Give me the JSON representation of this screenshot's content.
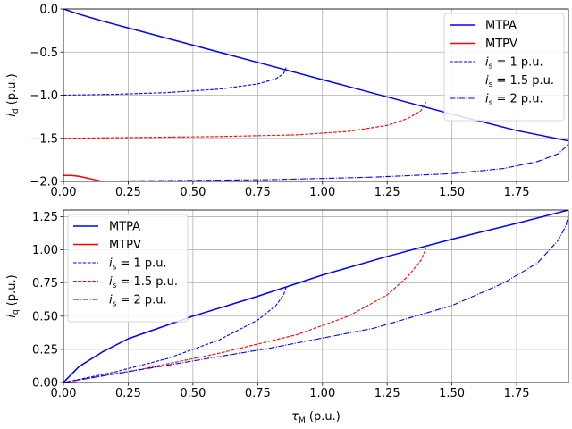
{
  "chart_data": [
    {
      "type": "line",
      "ylabel_main": "i",
      "ylabel_sub": "d",
      "ylabel_unit": " (p.u.)",
      "xlim": [
        0,
        1.95
      ],
      "ylim": [
        -2.0,
        0.0
      ],
      "xticks": [
        "0.00",
        "0.25",
        "0.50",
        "0.75",
        "1.00",
        "1.25",
        "1.50",
        "1.75"
      ],
      "xtick_values": [
        0,
        0.25,
        0.5,
        0.75,
        1.0,
        1.25,
        1.5,
        1.75
      ],
      "yticks": [
        "0.0",
        "−0.5",
        "−1.0",
        "−1.5",
        "−2.0"
      ],
      "ytick_values": [
        0,
        -0.5,
        -1.0,
        -1.5,
        -2.0
      ],
      "grid": true,
      "legend_position": "upper-right",
      "series": [
        {
          "name": "MTPA",
          "color": "#0000ff",
          "dash": "solid",
          "x": [
            0,
            0.06,
            0.15,
            0.25,
            0.5,
            0.75,
            1.0,
            1.25,
            1.5,
            1.75,
            1.95
          ],
          "y": [
            0,
            -0.06,
            -0.14,
            -0.22,
            -0.42,
            -0.62,
            -0.82,
            -1.02,
            -1.22,
            -1.41,
            -1.53
          ]
        },
        {
          "name": "MTPV",
          "color": "#ff0000",
          "dash": "solid",
          "x": [
            0,
            0.03,
            0.06,
            0.09,
            0.12,
            0.15
          ],
          "y": [
            -1.93,
            -1.93,
            -1.94,
            -1.96,
            -1.98,
            -2.0
          ]
        },
        {
          "name_prefix": "i",
          "name_sub": "s",
          "name_suffix": " = 1 p.u.",
          "color": "#0000ff",
          "dash": "dashed",
          "x": [
            0,
            0.2,
            0.4,
            0.6,
            0.75,
            0.82,
            0.85,
            0.86
          ],
          "y": [
            -1.0,
            -0.99,
            -0.97,
            -0.93,
            -0.87,
            -0.81,
            -0.75,
            -0.68
          ]
        },
        {
          "name_prefix": "i",
          "name_sub": "s",
          "name_suffix": " = 1.5 p.u.",
          "color": "#ff0000",
          "dash": "dashed",
          "x": [
            0,
            0.3,
            0.6,
            0.9,
            1.1,
            1.25,
            1.33,
            1.38,
            1.4
          ],
          "y": [
            -1.5,
            -1.49,
            -1.48,
            -1.46,
            -1.42,
            -1.35,
            -1.27,
            -1.18,
            -1.08
          ]
        },
        {
          "name_prefix": "i",
          "name_sub": "s",
          "name_suffix": " = 2 p.u.",
          "color": "#0000ff",
          "dash": "dashdot",
          "x": [
            0,
            0.4,
            0.8,
            1.2,
            1.5,
            1.7,
            1.83,
            1.91,
            1.94,
            1.95
          ],
          "y": [
            -2.0,
            -1.99,
            -1.98,
            -1.95,
            -1.91,
            -1.85,
            -1.77,
            -1.68,
            -1.6,
            -1.55
          ]
        }
      ]
    },
    {
      "type": "line",
      "xlabel_main": "τ",
      "xlabel_sub": "M",
      "xlabel_unit": " (p.u.)",
      "ylabel_main": "i",
      "ylabel_sub": "q",
      "ylabel_unit": " (p.u.)",
      "xlim": [
        0,
        1.95
      ],
      "ylim": [
        0,
        1.3
      ],
      "xticks": [
        "0.00",
        "0.25",
        "0.50",
        "0.75",
        "1.00",
        "1.25",
        "1.50",
        "1.75"
      ],
      "xtick_values": [
        0,
        0.25,
        0.5,
        0.75,
        1.0,
        1.25,
        1.5,
        1.75
      ],
      "yticks": [
        "0.00",
        "0.25",
        "0.50",
        "0.75",
        "1.00",
        "1.25"
      ],
      "ytick_values": [
        0,
        0.25,
        0.5,
        0.75,
        1.0,
        1.25
      ],
      "grid": true,
      "legend_position": "upper-left",
      "series": [
        {
          "name": "MTPA",
          "color": "#0000ff",
          "dash": "solid",
          "x": [
            0,
            0.06,
            0.15,
            0.25,
            0.5,
            0.75,
            1.0,
            1.25,
            1.5,
            1.75,
            1.95
          ],
          "y": [
            0,
            0.12,
            0.23,
            0.33,
            0.5,
            0.65,
            0.81,
            0.95,
            1.08,
            1.2,
            1.3
          ]
        },
        {
          "name": "MTPV",
          "color": "#ff0000",
          "dash": "solid",
          "x": [
            0,
            0.05
          ],
          "y": [
            0,
            0.0
          ]
        },
        {
          "name_prefix": "i",
          "name_sub": "s",
          "name_suffix": " = 1 p.u.",
          "color": "#0000ff",
          "dash": "dashed",
          "x": [
            0,
            0.2,
            0.4,
            0.6,
            0.75,
            0.82,
            0.85,
            0.86
          ],
          "y": [
            0,
            0.08,
            0.18,
            0.32,
            0.47,
            0.58,
            0.66,
            0.72
          ]
        },
        {
          "name_prefix": "i",
          "name_sub": "s",
          "name_suffix": " = 1.5 p.u.",
          "color": "#ff0000",
          "dash": "dashed",
          "x": [
            0,
            0.3,
            0.6,
            0.9,
            1.1,
            1.25,
            1.33,
            1.38,
            1.4
          ],
          "y": [
            0,
            0.1,
            0.22,
            0.36,
            0.5,
            0.66,
            0.8,
            0.92,
            1.01
          ]
        },
        {
          "name_prefix": "i",
          "name_sub": "s",
          "name_suffix": " = 2 p.u.",
          "color": "#0000ff",
          "dash": "dashdot",
          "x": [
            0,
            0.4,
            0.8,
            1.2,
            1.5,
            1.7,
            1.83,
            1.91,
            1.94,
            1.95
          ],
          "y": [
            0,
            0.13,
            0.26,
            0.41,
            0.58,
            0.75,
            0.9,
            1.07,
            1.18,
            1.27
          ]
        }
      ]
    }
  ]
}
